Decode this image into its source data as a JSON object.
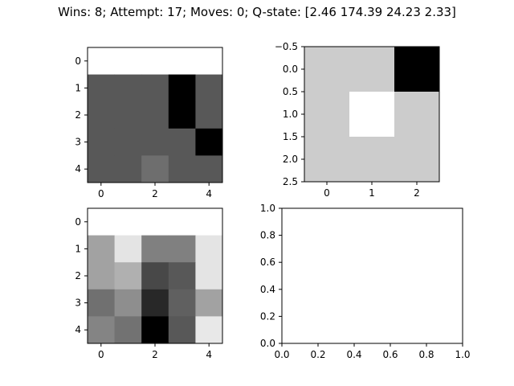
{
  "title": "Wins: 8; Attempt: 17; Moves: 0; Q-state: [2.46 174.39 24.23 2.33]",
  "panels": {
    "top_left": {
      "x_ticks": [
        "0",
        "2",
        "4"
      ],
      "y_ticks": [
        "0",
        "1",
        "2",
        "3",
        "4"
      ],
      "grid": [
        [
          255,
          255,
          255,
          255,
          255
        ],
        [
          88,
          88,
          88,
          0,
          88
        ],
        [
          88,
          88,
          88,
          0,
          88
        ],
        [
          88,
          88,
          88,
          88,
          0
        ],
        [
          88,
          88,
          110,
          88,
          88
        ]
      ]
    },
    "top_right": {
      "x_ticks": [
        "0",
        "1",
        "2"
      ],
      "y_ticks": [
        "−0.5",
        "0.0",
        "0.5",
        "1.0",
        "1.5",
        "2.0",
        "2.5"
      ],
      "grid": [
        [
          204,
          204,
          0
        ],
        [
          204,
          255,
          204
        ],
        [
          204,
          204,
          204
        ]
      ]
    },
    "bottom_left": {
      "x_ticks": [
        "0",
        "2",
        "4"
      ],
      "y_ticks": [
        "0",
        "1",
        "2",
        "3",
        "4"
      ],
      "grid": [
        [
          255,
          255,
          255,
          255,
          255
        ],
        [
          162,
          228,
          128,
          128,
          228
        ],
        [
          162,
          176,
          72,
          88,
          228
        ],
        [
          112,
          142,
          40,
          96,
          162
        ],
        [
          132,
          114,
          0,
          88,
          232
        ]
      ]
    },
    "bottom_right": {
      "x_ticks": [
        "0.0",
        "0.2",
        "0.4",
        "0.6",
        "0.8",
        "1.0"
      ],
      "y_ticks": [
        "0.0",
        "0.2",
        "0.4",
        "0.6",
        "0.8",
        "1.0"
      ]
    }
  }
}
